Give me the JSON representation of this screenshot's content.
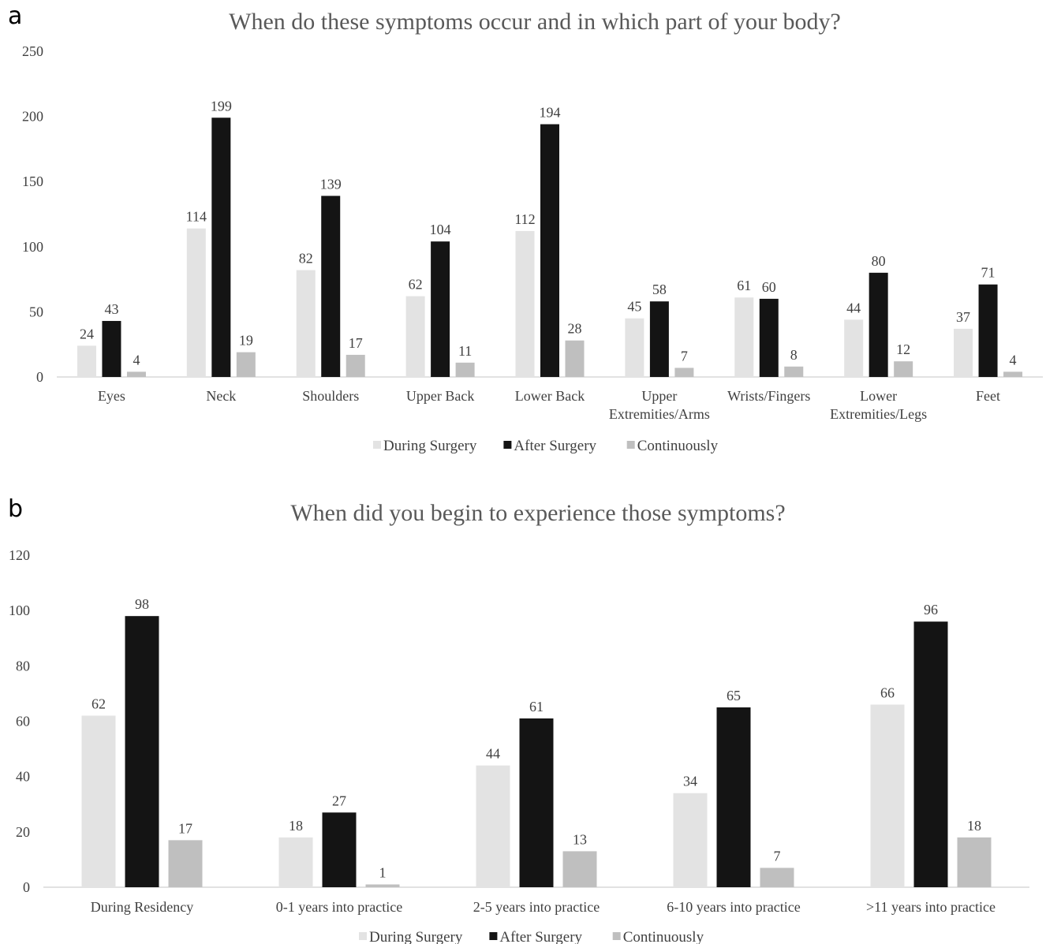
{
  "panels": {
    "a": "a",
    "b": "b"
  },
  "colors": {
    "during": "#e3e3e3",
    "after": "#141414",
    "continuously": "#bfbfbf",
    "axis": "#d9d9d9",
    "text": "#404040",
    "title": "#595959"
  },
  "chart_data": [
    {
      "type": "bar",
      "title": "When do these symptoms occur and in which part of your body?",
      "categories": [
        [
          "Eyes"
        ],
        [
          "Neck"
        ],
        [
          "Shoulders"
        ],
        [
          "Upper Back"
        ],
        [
          "Lower Back"
        ],
        [
          "Upper",
          "Extremities/Arms"
        ],
        [
          "Wrists/Fingers"
        ],
        [
          "Lower",
          "Extremities/Legs"
        ],
        [
          "Feet"
        ]
      ],
      "series": [
        {
          "name": "During Surgery",
          "values": [
            24,
            114,
            82,
            62,
            112,
            45,
            61,
            44,
            37
          ]
        },
        {
          "name": "After Surgery",
          "values": [
            43,
            199,
            139,
            104,
            194,
            58,
            60,
            80,
            71
          ]
        },
        {
          "name": "Continuously",
          "values": [
            4,
            19,
            17,
            11,
            28,
            7,
            8,
            12,
            4
          ]
        }
      ],
      "ylim": [
        0,
        250
      ],
      "yticks": [
        0,
        50,
        100,
        150,
        200,
        250
      ],
      "xlabel": "",
      "ylabel": "",
      "legend": "bottom",
      "grid": false
    },
    {
      "type": "bar",
      "title": "When did you begin to experience those symptoms?",
      "categories": [
        [
          "During Residency"
        ],
        [
          "0-1 years into practice"
        ],
        [
          "2-5 years into practice"
        ],
        [
          "6-10 years into practice"
        ],
        [
          ">11 years into practice"
        ]
      ],
      "series": [
        {
          "name": "During Surgery",
          "values": [
            62,
            18,
            44,
            34,
            66
          ]
        },
        {
          "name": "After Surgery",
          "values": [
            98,
            27,
            61,
            65,
            96
          ]
        },
        {
          "name": "Continuously",
          "values": [
            17,
            1,
            13,
            7,
            18
          ]
        }
      ],
      "ylim": [
        0,
        120
      ],
      "yticks": [
        0,
        20,
        40,
        60,
        80,
        100,
        120
      ],
      "xlabel": "",
      "ylabel": "",
      "legend": "bottom",
      "grid": false
    }
  ]
}
